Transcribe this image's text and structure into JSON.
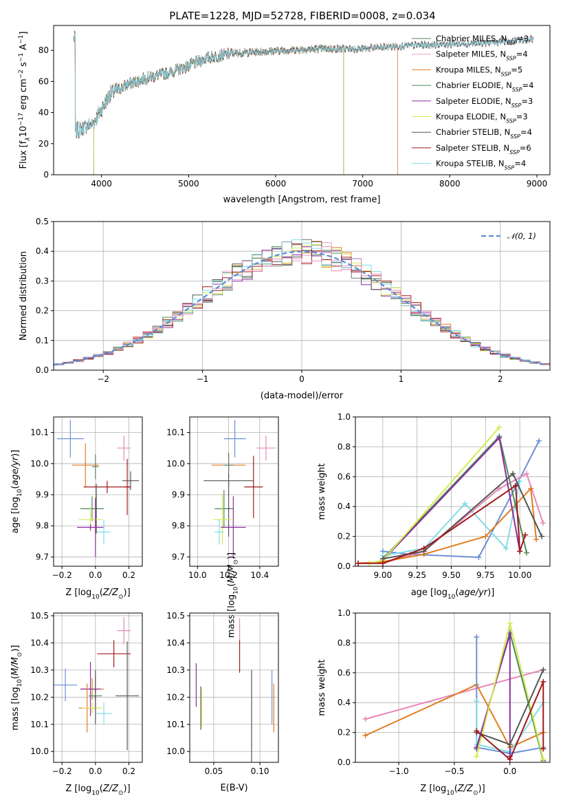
{
  "figure": {
    "title": "PLATE=1228, MJD=52728, FIBERID=0008, z=0.034"
  },
  "colors": {
    "Chabrier MILES": "#5b7f62",
    "Salpeter MILES": "#e8a0c8",
    "Kroupa MILES": "#e07b20",
    "Chabrier ELODIE": "#4a8a5a",
    "Salpeter ELODIE": "#8e2ca0",
    "Kroupa ELODIE": "#d6ea50",
    "Chabrier STELIB": "#555555",
    "Salpeter STELIB": "#a01818",
    "Kroupa STELIB": "#80dde8",
    "blue": "#6a8fd8",
    "pink": "#e888b8",
    "normal": "#5b8fd8"
  },
  "chart_data": [
    {
      "id": "spectrum",
      "type": "line",
      "xlabel": "wavelength [Angstrom, rest frame]",
      "ylabel_parts": [
        "Flux [f",
        "λ",
        "10",
        "−17",
        " erg cm",
        "−2",
        " s",
        "−1",
        " A",
        "−1",
        "]"
      ],
      "xlim": [
        3450,
        9150
      ],
      "ylim": [
        0,
        96
      ],
      "xticks": [
        4000,
        5000,
        6000,
        7000,
        8000,
        9000
      ],
      "yticks": [
        0,
        20,
        40,
        60,
        80
      ],
      "continuum": [
        [
          3700,
          28
        ],
        [
          3900,
          33
        ],
        [
          4000,
          42
        ],
        [
          4100,
          52
        ],
        [
          4300,
          58
        ],
        [
          4500,
          62
        ],
        [
          4800,
          66
        ],
        [
          5000,
          70
        ],
        [
          5200,
          75
        ],
        [
          5500,
          78
        ],
        [
          5800,
          79
        ],
        [
          6100,
          80
        ],
        [
          6500,
          81
        ],
        [
          7000,
          81
        ],
        [
          7500,
          83
        ],
        [
          8000,
          84
        ],
        [
          8500,
          85
        ],
        [
          8900,
          87
        ]
      ],
      "legend": [
        {
          "name": "Chabrier MILES",
          "nssp": "3"
        },
        {
          "name": "Salpeter MILES",
          "nssp": "4"
        },
        {
          "name": "Kroupa MILES",
          "nssp": "5"
        },
        {
          "name": "Chabrier ELODIE",
          "nssp": "4"
        },
        {
          "name": "Salpeter ELODIE",
          "nssp": "3"
        },
        {
          "name": "Kroupa ELODIE",
          "nssp": "3"
        },
        {
          "name": "Chabrier STELIB",
          "nssp": "4"
        },
        {
          "name": "Salpeter STELIB",
          "nssp": "6"
        },
        {
          "name": "Kroupa STELIB",
          "nssp": "4"
        }
      ]
    },
    {
      "id": "residuals",
      "type": "bar",
      "xlabel": "(data-model)/error",
      "ylabel": "Normed distribution",
      "xlim": [
        -2.5,
        2.5
      ],
      "ylim": [
        0,
        0.5
      ],
      "xticks": [
        -2,
        -1,
        0,
        1,
        2
      ],
      "yticks": [
        0.0,
        0.1,
        0.2,
        0.3,
        0.4,
        0.5
      ],
      "legend": "𝒩(0, 1)",
      "bin_width": 0.1
    },
    {
      "id": "age-vs-Z",
      "type": "scatter",
      "xlabel": "Z [log10(Z/Z⊙)]",
      "ylabel": "age  [log10(age/yr)]",
      "xlim": [
        -0.25,
        0.28
      ],
      "ylim": [
        9.67,
        10.15
      ],
      "xticks": [
        -0.2,
        0.0,
        0.2
      ],
      "yticks": [
        9.7,
        9.8,
        9.9,
        10.0,
        10.1
      ],
      "points": [
        {
          "x": -0.15,
          "xe": 0.08,
          "y": 10.08,
          "ye": 0.06,
          "c": "blue"
        },
        {
          "x": 0.17,
          "xe": 0.04,
          "y": 10.05,
          "ye": 0.04,
          "c": "pink"
        },
        {
          "x": -0.06,
          "xe": 0.08,
          "y": 9.995,
          "ye": 0.07,
          "c": "Kroupa MILES"
        },
        {
          "x": 0.0,
          "xe": 0.02,
          "y": 9.99,
          "ye": 0.04,
          "c": "Chabrier MILES"
        },
        {
          "x": 0.21,
          "xe": 0.05,
          "y": 9.945,
          "ye": 0.03,
          "c": "Chabrier STELIB"
        },
        {
          "x": 0.19,
          "xe": 0.02,
          "y": 9.925,
          "ye": 0.09,
          "c": "Salpeter STELIB"
        },
        {
          "x": 0.07,
          "xe": 0.14,
          "y": 9.925,
          "ye": 0.02,
          "c": "Salpeter STELIB"
        },
        {
          "x": -0.02,
          "xe": 0.07,
          "y": 9.855,
          "ye": 0.04,
          "c": "Chabrier ELODIE"
        },
        {
          "x": 0.005,
          "xe": 0.005,
          "y": 9.855,
          "ye": 0.08,
          "c": "Chabrier STELIB"
        },
        {
          "x": -0.03,
          "xe": 0.07,
          "y": 9.82,
          "ye": 0.04,
          "c": "Kroupa ELODIE"
        },
        {
          "x": 0.0,
          "xe": 0.01,
          "y": 9.82,
          "ye": 0.08,
          "c": "Kroupa ELODIE"
        },
        {
          "x": -0.03,
          "xe": 0.08,
          "y": 9.795,
          "ye": 0.01,
          "c": "Salpeter ELODIE"
        },
        {
          "x": 0.0,
          "xe": 0.005,
          "y": 9.795,
          "ye": 0.095,
          "c": "Salpeter ELODIE"
        },
        {
          "x": 0.05,
          "xe": 0.04,
          "y": 9.78,
          "ye": 0.04,
          "c": "Kroupa STELIB"
        }
      ]
    },
    {
      "id": "age-vs-mass",
      "type": "scatter",
      "xlabel": "mass [log10(M/M⊙)]",
      "ylabel": "",
      "xlim": [
        9.95,
        10.52
      ],
      "ylim": [
        9.67,
        10.15
      ],
      "xticks": [
        10.0,
        10.2,
        10.4
      ],
      "yticks": [
        9.7,
        9.8,
        9.9,
        10.0,
        10.1
      ],
      "points": [
        {
          "x": 10.24,
          "xe": 0.07,
          "y": 10.08,
          "ye": 0.06,
          "c": "blue"
        },
        {
          "x": 10.44,
          "xe": 0.06,
          "y": 10.05,
          "ye": 0.04,
          "c": "pink"
        },
        {
          "x": 10.2,
          "xe": 0.11,
          "y": 9.995,
          "ye": 0.04,
          "c": "Kroupa MILES"
        },
        {
          "x": 10.2,
          "xe": 0.03,
          "y": 9.995,
          "ye": 0.04,
          "c": "Chabrier MILES"
        },
        {
          "x": 10.2,
          "xe": 0.16,
          "y": 9.945,
          "ye": 0.02,
          "c": "Chabrier STELIB"
        },
        {
          "x": 10.36,
          "xe": 0.06,
          "y": 9.925,
          "ye": 0.1,
          "c": "Salpeter STELIB"
        },
        {
          "x": 10.17,
          "xe": 0.06,
          "y": 9.855,
          "ye": 0.06,
          "c": "Chabrier ELODIE"
        },
        {
          "x": 10.2,
          "xe": 0.01,
          "y": 9.855,
          "ye": 0.09,
          "c": "Chabrier STELIB"
        },
        {
          "x": 10.16,
          "xe": 0.06,
          "y": 9.82,
          "ye": 0.08,
          "c": "Kroupa ELODIE"
        },
        {
          "x": 10.23,
          "xe": 0.08,
          "y": 9.795,
          "ye": 0.1,
          "c": "Salpeter ELODIE"
        },
        {
          "x": 10.14,
          "xe": 0.03,
          "y": 9.78,
          "ye": 0.04,
          "c": "Kroupa STELIB"
        }
      ]
    },
    {
      "id": "weight-vs-age",
      "type": "line",
      "xlabel": "age  [log10(age/yr)]",
      "ylabel": "mass weight",
      "xlim": [
        8.8,
        10.22
      ],
      "ylim": [
        0,
        1.0
      ],
      "xticks": [
        9.0,
        9.25,
        9.5,
        9.75,
        10.0
      ],
      "yticks": [
        0.0,
        0.2,
        0.4,
        0.6,
        0.8,
        1.0
      ],
      "series": [
        {
          "c": "blue",
          "x": [
            9.0,
            9.2,
            9.7,
            9.98,
            10.14
          ],
          "y": [
            0.1,
            0.08,
            0.06,
            0.55,
            0.84
          ]
        },
        {
          "c": "Kroupa STELIB",
          "x": [
            9.0,
            9.3,
            9.6,
            9.9,
            10.0
          ],
          "y": [
            0.07,
            0.12,
            0.42,
            0.12,
            0.57
          ]
        },
        {
          "c": "pink",
          "x": [
            9.0,
            9.3,
            9.85,
            10.05,
            10.17
          ],
          "y": [
            0.02,
            0.1,
            0.52,
            0.62,
            0.29
          ]
        },
        {
          "c": "Kroupa MILES",
          "x": [
            8.82,
            9.0,
            9.3,
            9.75,
            10.08,
            10.12
          ],
          "y": [
            0.02,
            0.03,
            0.08,
            0.2,
            0.52,
            0.18
          ]
        },
        {
          "c": "Chabrier ELODIE",
          "x": [
            9.0,
            9.85,
            10.05
          ],
          "y": [
            0.05,
            0.87,
            0.09
          ]
        },
        {
          "c": "Salpeter ELODIE",
          "x": [
            9.0,
            9.85,
            10.0
          ],
          "y": [
            0.04,
            0.86,
            0.1
          ]
        },
        {
          "c": "Kroupa ELODIE",
          "x": [
            8.9,
            9.0,
            9.85
          ],
          "y": [
            0.02,
            0.04,
            0.93
          ]
        },
        {
          "c": "Chabrier STELIB",
          "x": [
            9.0,
            9.3,
            9.95,
            10.16
          ],
          "y": [
            0.05,
            0.1,
            0.62,
            0.2
          ]
        },
        {
          "c": "Salpeter STELIB",
          "x": [
            8.82,
            9.0,
            9.3,
            9.97,
            10.0,
            10.04
          ],
          "y": [
            0.02,
            0.02,
            0.12,
            0.54,
            0.1,
            0.21
          ]
        }
      ]
    },
    {
      "id": "mass-vs-Z",
      "type": "scatter",
      "xlabel": "Z [log10(Z/Z⊙)]",
      "ylabel": "mass [log10(M/M⊙)]",
      "xlim": [
        -0.25,
        0.28
      ],
      "ylim": [
        9.96,
        10.51
      ],
      "xticks": [
        -0.2,
        0.0,
        0.2
      ],
      "yticks": [
        10.0,
        10.1,
        10.2,
        10.3,
        10.4,
        10.5
      ],
      "points": [
        {
          "x": -0.18,
          "xe": 0.07,
          "y": 10.245,
          "ye": 0.06,
          "c": "blue"
        },
        {
          "x": 0.17,
          "xe": 0.04,
          "y": 10.445,
          "ye": 0.05,
          "c": "pink"
        },
        {
          "x": 0.11,
          "xe": 0.1,
          "y": 10.36,
          "ye": 0.05,
          "c": "Salpeter STELIB"
        },
        {
          "x": -0.02,
          "xe": 0.07,
          "y": 10.23,
          "ye": 0.04,
          "c": "Kroupa MILES"
        },
        {
          "x": -0.03,
          "xe": 0.06,
          "y": 10.23,
          "ye": 0.1,
          "c": "Salpeter ELODIE"
        },
        {
          "x": 0.0,
          "xe": 0.005,
          "y": 10.225,
          "ye": 0.06,
          "c": "Chabrier MILES"
        },
        {
          "x": 0.0,
          "xe": 0.04,
          "y": 10.205,
          "ye": 0.02,
          "c": "Chabrier ELODIE"
        },
        {
          "x": 0.19,
          "xe": 0.07,
          "y": 10.205,
          "ye": 0.2,
          "c": "Chabrier STELIB"
        },
        {
          "x": -0.05,
          "xe": 0.05,
          "y": 10.16,
          "ye": 0.09,
          "c": "Kroupa MILES"
        },
        {
          "x": -0.02,
          "xe": 0.06,
          "y": 10.16,
          "ye": 0.02,
          "c": "Kroupa ELODIE"
        },
        {
          "x": 0.05,
          "xe": 0.05,
          "y": 10.14,
          "ye": 0.04,
          "c": "Kroupa STELIB"
        },
        {
          "x": 0.0,
          "xe": 0.005,
          "y": 10.2,
          "ye": 0.1,
          "c": "Chabrier STELIB"
        }
      ]
    },
    {
      "id": "mass-vs-ebv",
      "type": "scatter",
      "xlabel": "E(B-V)",
      "ylabel": "",
      "xlim": [
        0.024,
        0.12
      ],
      "ylim": [
        9.96,
        10.51
      ],
      "xticks": [
        0.05,
        0.1
      ],
      "yticks": [
        10.0,
        10.1,
        10.2,
        10.3,
        10.4,
        10.5
      ],
      "points": [
        {
          "x": 0.031,
          "xe": 0.0,
          "y": 10.245,
          "ye": 0.08,
          "c": "Salpeter ELODIE"
        },
        {
          "x": 0.036,
          "xe": 0.0,
          "y": 10.16,
          "ye": 0.08,
          "c": "Chabrier STELIB"
        },
        {
          "x": 0.037,
          "xe": 0.0,
          "y": 10.16,
          "ye": 0.07,
          "c": "Kroupa ELODIE"
        },
        {
          "x": 0.078,
          "xe": 0.0,
          "y": 10.43,
          "ye": 0.06,
          "c": "pink"
        },
        {
          "x": 0.078,
          "xe": 0.0,
          "y": 10.35,
          "ye": 0.06,
          "c": "Salpeter STELIB"
        },
        {
          "x": 0.091,
          "xe": 0.0,
          "y": 10.11,
          "ye": 0.19,
          "c": "Chabrier STELIB"
        },
        {
          "x": 0.113,
          "xe": 0.0,
          "y": 10.2,
          "ye": 0.1,
          "c": "blue"
        },
        {
          "x": 0.115,
          "xe": 0.0,
          "y": 10.16,
          "ye": 0.09,
          "c": "Kroupa MILES"
        }
      ]
    },
    {
      "id": "weight-vs-Z",
      "type": "line",
      "xlabel": "Z [log10(Z/Z⊙)]",
      "ylabel": "mass weight",
      "xlim": [
        -1.39,
        0.36
      ],
      "ylim": [
        0,
        1.0
      ],
      "xticks": [
        -1.0,
        -0.5,
        0.0
      ],
      "yticks": [
        0.0,
        0.2,
        0.4,
        0.6,
        0.8,
        1.0
      ],
      "series": [
        {
          "c": "pink",
          "x": [
            -1.3,
            0.3
          ],
          "y": [
            0.29,
            0.62
          ]
        },
        {
          "c": "Kroupa MILES",
          "x": [
            -1.3,
            -0.3,
            0.0,
            0.3
          ],
          "y": [
            0.18,
            0.52,
            0.1,
            0.2
          ]
        },
        {
          "c": "blue",
          "x": [
            -0.3,
            -0.3,
            0.0,
            0.3
          ],
          "y": [
            0.84,
            0.1,
            0.06,
            0.1
          ]
        },
        {
          "c": "Kroupa STELIB",
          "x": [
            -0.3,
            -0.3,
            0.0,
            0.3
          ],
          "y": [
            0.41,
            0.12,
            0.07,
            0.4
          ]
        },
        {
          "c": "Chabrier ELODIE",
          "x": [
            -0.3,
            0.0,
            0.3
          ],
          "y": [
            0.09,
            0.87,
            0.01
          ]
        },
        {
          "c": "Salpeter ELODIE",
          "x": [
            -0.3,
            0.0,
            0.0
          ],
          "y": [
            0.1,
            0.86,
            0.04
          ]
        },
        {
          "c": "Kroupa ELODIE",
          "x": [
            -0.3,
            0.0,
            0.3
          ],
          "y": [
            0.04,
            0.93,
            0.02
          ]
        },
        {
          "c": "Chabrier STELIB",
          "x": [
            -0.3,
            0.0,
            0.3
          ],
          "y": [
            0.2,
            0.12,
            0.62
          ]
        },
        {
          "c": "Salpeter STELIB",
          "x": [
            -0.3,
            0.0,
            0.3,
            0.3
          ],
          "y": [
            0.21,
            0.02,
            0.54,
            0.09
          ]
        }
      ]
    }
  ]
}
